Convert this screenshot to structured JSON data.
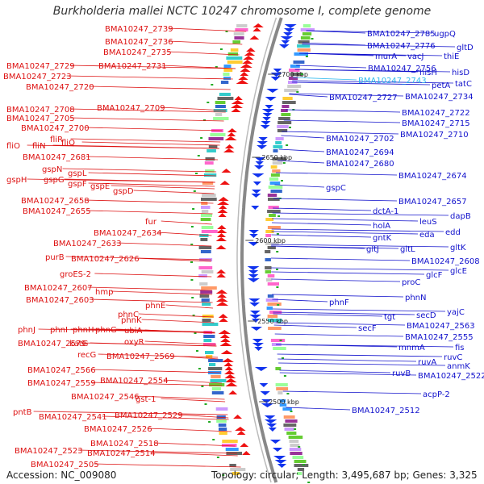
{
  "title": "Burkholderia mallei NCTC 10247 chromosome I, complete genome",
  "accession": "Accession: NC_009080",
  "topology": "Topology: circular; Length: 3,495,687 bp; Genes: 3,325",
  "colors": {
    "left_labels": "#dd1111",
    "right_labels": "#1111cc",
    "highlight_label": "#33bbee",
    "backbone": "#888888",
    "tick": "#22aa22"
  },
  "kbp_ticks": [
    {
      "label": "2700 kbp"
    },
    {
      "label": "2650 kbp"
    },
    {
      "label": "2600 kbp"
    },
    {
      "label": "2550 kbp"
    },
    {
      "label": "2500 kbp"
    }
  ],
  "left_labels": [
    {
      "text": "BMA10247_2739"
    },
    {
      "text": "BMA10247_2736"
    },
    {
      "text": "BMA10247_2735"
    },
    {
      "text": "BMA10247_2729"
    },
    {
      "text": "BMA10247_2731"
    },
    {
      "text": "BMA10247_2723"
    },
    {
      "text": "BMA10247_2720"
    },
    {
      "text": "BMA10247_2708"
    },
    {
      "text": "BMA10247_2709"
    },
    {
      "text": "BMA10247_2705"
    },
    {
      "text": "BMA10247_2700"
    },
    {
      "text": "fliR"
    },
    {
      "text": "fliO"
    },
    {
      "text": "fliN"
    },
    {
      "text": "fliQ"
    },
    {
      "text": "BMA10247_2681"
    },
    {
      "text": "gspN"
    },
    {
      "text": "gspL"
    },
    {
      "text": "gspH"
    },
    {
      "text": "gspG"
    },
    {
      "text": "gspF"
    },
    {
      "text": "gspE"
    },
    {
      "text": "gspD"
    },
    {
      "text": "BMA10247_2658"
    },
    {
      "text": "BMA10247_2655"
    },
    {
      "text": "fur"
    },
    {
      "text": "BMA10247_2634"
    },
    {
      "text": "BMA10247_2633"
    },
    {
      "text": "purB"
    },
    {
      "text": "BMA10247_2626"
    },
    {
      "text": "groES-2"
    },
    {
      "text": "BMA10247_2607"
    },
    {
      "text": "hmp"
    },
    {
      "text": "BMA10247_2603"
    },
    {
      "text": "phnE"
    },
    {
      "text": "phnC"
    },
    {
      "text": "phnK"
    },
    {
      "text": "phnJ"
    },
    {
      "text": "phnI"
    },
    {
      "text": "phnH"
    },
    {
      "text": "phnG"
    },
    {
      "text": "ubiA"
    },
    {
      "text": "BMA10247_2579"
    },
    {
      "text": "katG"
    },
    {
      "text": "oxyR"
    },
    {
      "text": "recG"
    },
    {
      "text": "BMA10247_2569"
    },
    {
      "text": "BMA10247_2566"
    },
    {
      "text": "BMA10247_2554"
    },
    {
      "text": "BMA10247_2559"
    },
    {
      "text": "BMA10247_2546"
    },
    {
      "text": "gst-1"
    },
    {
      "text": "pntB"
    },
    {
      "text": "BMA10247_2541"
    },
    {
      "text": "BMA10247_2529"
    },
    {
      "text": "BMA10247_2526"
    },
    {
      "text": "BMA10247_2518"
    },
    {
      "text": "BMA10247_2523"
    },
    {
      "text": "BMA10247_2514"
    },
    {
      "text": "BMA10247_2505"
    }
  ],
  "right_labels": [
    {
      "text": "BMA10247_2785"
    },
    {
      "text": "ugpQ"
    },
    {
      "text": "BMA10247_2776"
    },
    {
      "text": "gltD"
    },
    {
      "text": "murA"
    },
    {
      "text": "vacJ"
    },
    {
      "text": "thiE"
    },
    {
      "text": "BMA10247_2756"
    },
    {
      "text": "hisH"
    },
    {
      "text": "hisD"
    },
    {
      "text": "BMA10247_2743",
      "highlight": true
    },
    {
      "text": "petA"
    },
    {
      "text": "tatC"
    },
    {
      "text": "BMA10247_2727"
    },
    {
      "text": "BMA10247_2734"
    },
    {
      "text": "BMA10247_2722"
    },
    {
      "text": "BMA10247_2715"
    },
    {
      "text": "BMA10247_2702"
    },
    {
      "text": "BMA10247_2710"
    },
    {
      "text": "BMA10247_2694"
    },
    {
      "text": "BMA10247_2680"
    },
    {
      "text": "BMA10247_2674"
    },
    {
      "text": "gspC"
    },
    {
      "text": "BMA10247_2657"
    },
    {
      "text": "dctA-1"
    },
    {
      "text": "dapB"
    },
    {
      "text": "leuS"
    },
    {
      "text": "holA"
    },
    {
      "text": "edd"
    },
    {
      "text": "eda"
    },
    {
      "text": "gntK"
    },
    {
      "text": "gltJ"
    },
    {
      "text": "gltL"
    },
    {
      "text": "gltK"
    },
    {
      "text": "BMA10247_2608"
    },
    {
      "text": "glcF"
    },
    {
      "text": "glcE"
    },
    {
      "text": "proC"
    },
    {
      "text": "phnF"
    },
    {
      "text": "phnN"
    },
    {
      "text": "tgt"
    },
    {
      "text": "secD"
    },
    {
      "text": "yajC"
    },
    {
      "text": "secF"
    },
    {
      "text": "BMA10247_2563"
    },
    {
      "text": "BMA10247_2555"
    },
    {
      "text": "mnmA"
    },
    {
      "text": "fis"
    },
    {
      "text": "ruvC"
    },
    {
      "text": "ruvA"
    },
    {
      "text": "anmK"
    },
    {
      "text": "ruvB"
    },
    {
      "text": "BMA10247_2522"
    },
    {
      "text": "acpP-2"
    },
    {
      "text": "BMA10247_2512"
    }
  ]
}
